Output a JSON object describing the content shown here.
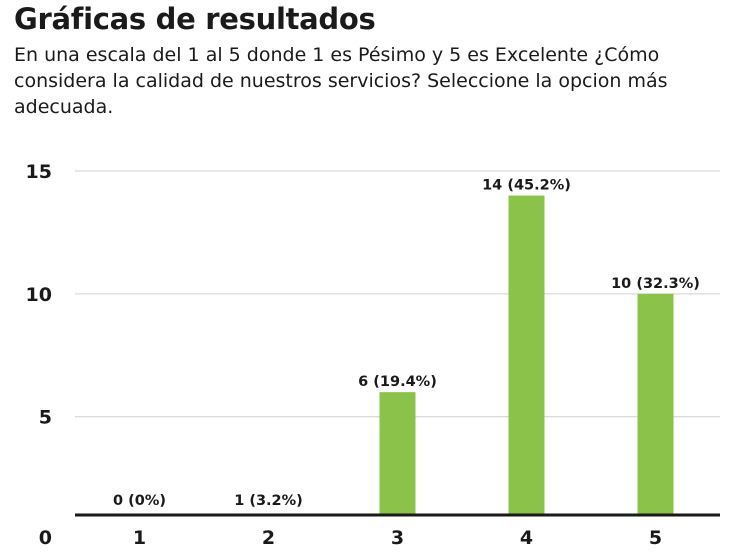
{
  "chart_data": {
    "type": "bar",
    "title": "Gráficas de resultados",
    "subtitle": "En una escala del 1 al 5 donde 1 es Pésimo y 5 es Excelente ¿Cómo considera la calidad de nuestros servicios? Seleccione la opcion más adecuada.",
    "categories": [
      "1",
      "2",
      "3",
      "4",
      "5"
    ],
    "values": [
      0,
      1,
      6,
      14,
      10
    ],
    "data_labels": [
      "0 (0%)",
      "1 (3.2%)",
      "6 (19.4%)",
      "14 (45.2%)",
      "10 (32.3%)"
    ],
    "y_ticks": [
      "0",
      "5",
      "10",
      "15"
    ],
    "ylim": [
      1,
      15
    ],
    "bar_color": "#8bc34a",
    "grid": true,
    "legend": "none"
  }
}
